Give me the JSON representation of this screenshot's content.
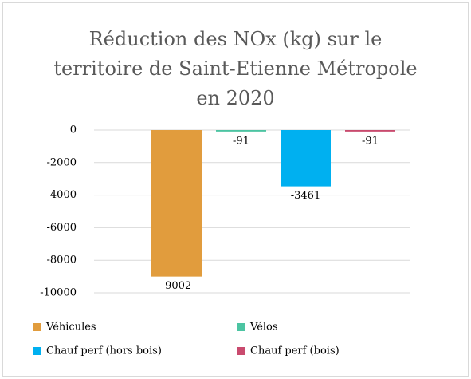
{
  "chart_data": {
    "type": "bar",
    "title": "Réduction des NOx (kg) sur le territoire de Saint-Etienne Métropole en 2020",
    "categories": [
      null
    ],
    "series": [
      {
        "name": "Véhicules",
        "color": "#e19c3d",
        "values": [
          -9002
        ]
      },
      {
        "name": "Vélos",
        "color": "#4cc4a2",
        "values": [
          -91
        ]
      },
      {
        "name": "Chauf perf (hors bois)",
        "color": "#00b0f0",
        "values": [
          -3461
        ]
      },
      {
        "name": "Chauf perf (bois)",
        "color": "#c94a6e",
        "values": [
          -91
        ]
      }
    ],
    "ylim": [
      -10000,
      0
    ],
    "yticks": [
      0,
      -2000,
      -4000,
      -6000,
      -8000,
      -10000
    ],
    "grid": true,
    "legend": "bottom"
  }
}
